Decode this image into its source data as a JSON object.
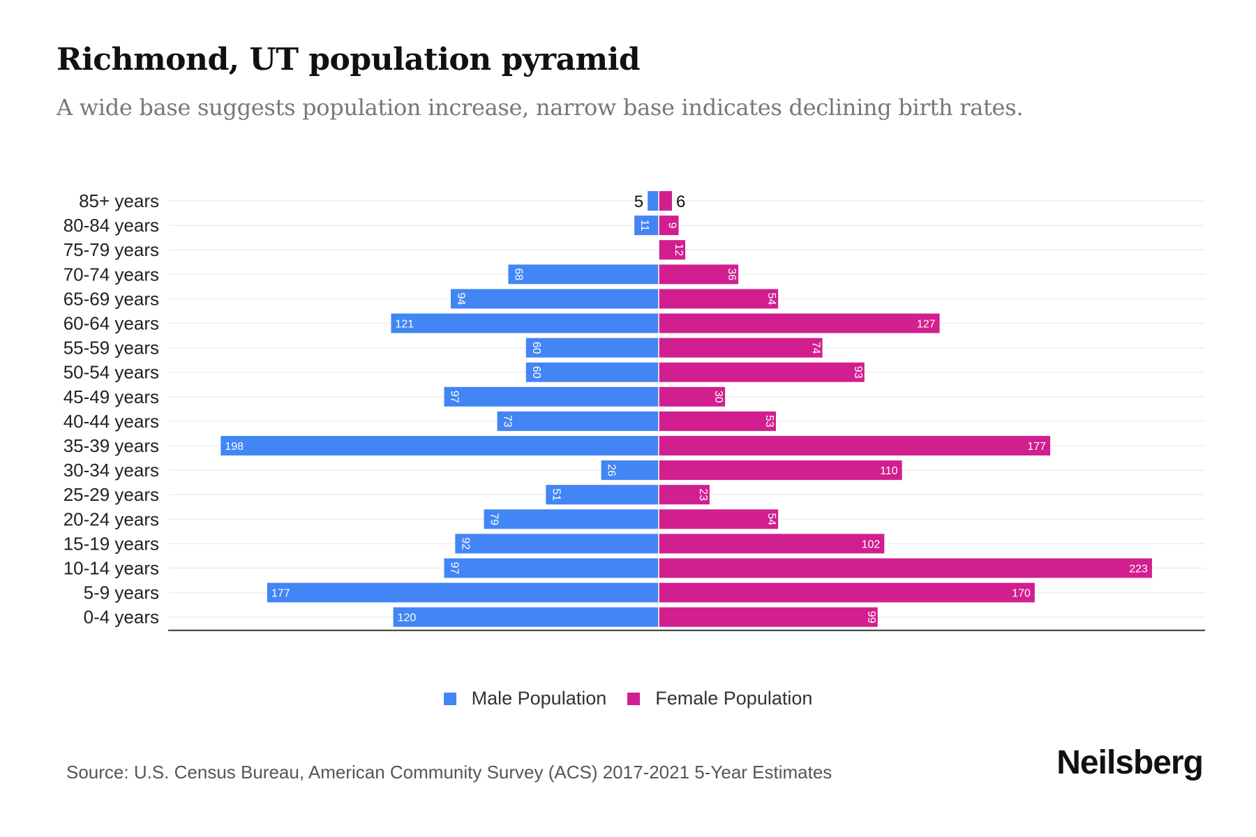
{
  "title": "Richmond, UT population pyramid",
  "subtitle": "A wide base suggests population increase, narrow base indicates declining birth rates.",
  "source": "Source: U.S. Census Bureau, American Community Survey (ACS) 2017-2021 5-Year Estimates",
  "logo": "Neilsberg",
  "colors": {
    "male": "#4285f4",
    "female": "#d11f8f"
  },
  "chart_data": {
    "type": "bar",
    "orientation": "horizontal-pyramid",
    "title": "Richmond, UT population pyramid",
    "categories": [
      "85+ years",
      "80-84 years",
      "75-79 years",
      "70-74 years",
      "65-69 years",
      "60-64 years",
      "55-59 years",
      "50-54 years",
      "45-49 years",
      "40-44 years",
      "35-39 years",
      "30-34 years",
      "25-29 years",
      "20-24 years",
      "15-19 years",
      "10-14 years",
      "5-9 years",
      "0-4 years"
    ],
    "series": [
      {
        "name": "Male Population",
        "values": [
          5,
          11,
          0,
          68,
          94,
          121,
          60,
          60,
          97,
          73,
          198,
          26,
          51,
          79,
          92,
          97,
          177,
          120
        ]
      },
      {
        "name": "Female Population",
        "values": [
          6,
          9,
          12,
          36,
          54,
          127,
          74,
          93,
          30,
          53,
          177,
          110,
          23,
          54,
          102,
          223,
          170,
          99
        ]
      }
    ],
    "legend": [
      "Male Population",
      "Female Population"
    ],
    "legend_position": "bottom",
    "xlim": [
      -223,
      223
    ],
    "grid": true
  }
}
